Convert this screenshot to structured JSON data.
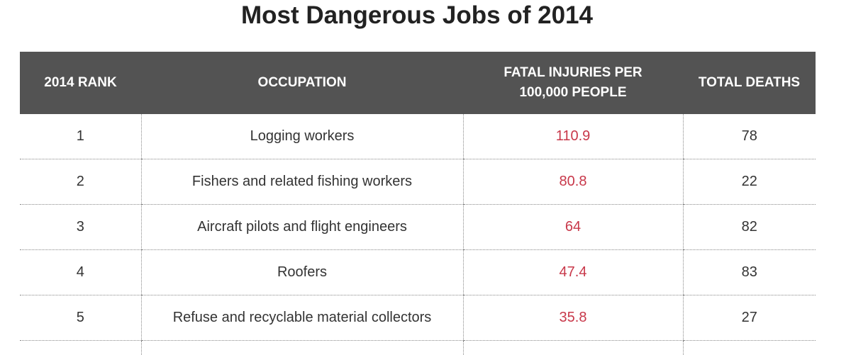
{
  "title": "Most Dangerous Jobs of 2014",
  "columns": [
    "2014 RANK",
    "OCCUPATION",
    "FATAL INJURIES PER\n100,000 PEOPLE",
    "TOTAL DEATHS"
  ],
  "columns_display": {
    "rank": "2014 RANK",
    "occupation": "OCCUPATION",
    "rate_line1": "FATAL INJURIES PER",
    "rate_line2": "100,000 PEOPLE",
    "deaths": "TOTAL DEATHS"
  },
  "rows": [
    {
      "rank": "1",
      "occupation": "Logging workers",
      "rate": "110.9",
      "deaths": "78"
    },
    {
      "rank": "2",
      "occupation": "Fishers and related fishing workers",
      "rate": "80.8",
      "deaths": "22"
    },
    {
      "rank": "3",
      "occupation": "Aircraft pilots and flight engineers",
      "rate": "64",
      "deaths": "82"
    },
    {
      "rank": "4",
      "occupation": "Roofers",
      "rate": "47.4",
      "deaths": "83"
    },
    {
      "rank": "5",
      "occupation": "Refuse and recyclable material collectors",
      "rate": "35.8",
      "deaths": "27"
    }
  ],
  "colors": {
    "header_bg": "#535353",
    "rate_text": "#c8384a"
  }
}
